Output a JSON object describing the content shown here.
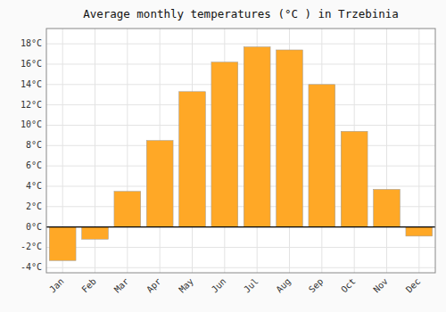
{
  "chart_data": {
    "type": "bar",
    "title": "Average monthly temperatures (°C ) in Trzebinia",
    "categories": [
      "Jan",
      "Feb",
      "Mar",
      "Apr",
      "May",
      "Jun",
      "Jul",
      "Aug",
      "Sep",
      "Oct",
      "Nov",
      "Dec"
    ],
    "values": [
      -3.3,
      -1.2,
      3.5,
      8.5,
      13.3,
      16.2,
      17.7,
      17.4,
      14.0,
      9.4,
      3.7,
      -0.9
    ],
    "color": "#FFA826",
    "ylim": [
      -4.5,
      19.5
    ],
    "yticks": [
      {
        "value": -4,
        "label": "-4°C"
      },
      {
        "value": -2,
        "label": "-2°C"
      },
      {
        "value": 0,
        "label": "0°C"
      },
      {
        "value": 2,
        "label": "2°C"
      },
      {
        "value": 4,
        "label": "4°C"
      },
      {
        "value": 6,
        "label": "6°C"
      },
      {
        "value": 8,
        "label": "8°C"
      },
      {
        "value": 10,
        "label": "10°C"
      },
      {
        "value": 12,
        "label": "12°C"
      },
      {
        "value": 14,
        "label": "14°C"
      },
      {
        "value": 16,
        "label": "16°C"
      },
      {
        "value": 18,
        "label": "18°C"
      }
    ],
    "grid": true
  }
}
